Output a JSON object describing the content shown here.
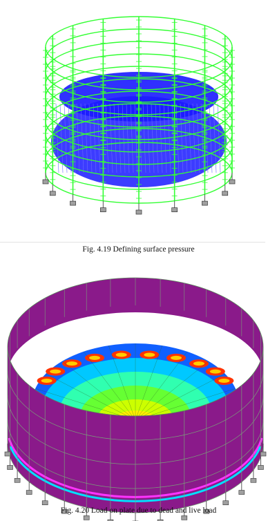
{
  "figures": [
    {
      "caption": "Fig. 4.19 Defining surface pressure"
    },
    {
      "caption": "Fig. 4.20 Load on plate due to dead and live load"
    }
  ],
  "colors": {
    "frame_green": "#33ff33",
    "pressure_blue": "#1a1aff",
    "wall_purple": "#8a1a8a",
    "support_gray": "#a0a0a0"
  }
}
